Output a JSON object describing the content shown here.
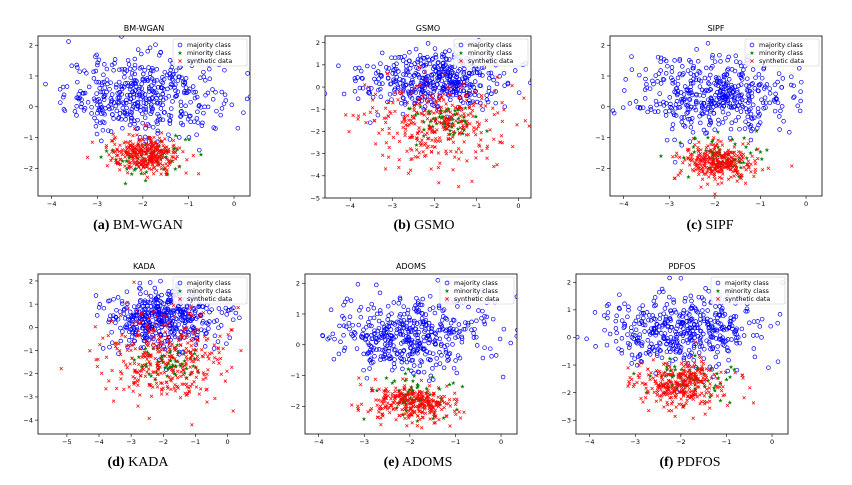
{
  "legend": {
    "majority": "majority class",
    "minority": "minority class",
    "synthetic": "synthetic data"
  },
  "colors": {
    "majority": "#0000ff",
    "minority": "#008000",
    "synthetic": "#ff0000"
  },
  "chart_data": [
    {
      "type": "scatter",
      "title": "BM-WGAN",
      "caption_letter": "(a)",
      "caption_text": " BM-WGAN",
      "xlim": [
        -4.3,
        0.35
      ],
      "ylim": [
        -2.9,
        2.3
      ],
      "xticks": [
        -4,
        -3,
        -2,
        -1,
        0
      ],
      "yticks": [
        -2,
        -1,
        0,
        1,
        2
      ],
      "series": [
        {
          "name": "majority class",
          "cluster": {
            "cx": -2.0,
            "cy": 0.35,
            "sx": 0.85,
            "sy": 0.65,
            "n": 460
          }
        },
        {
          "name": "minority class",
          "cluster": {
            "cx": -1.85,
            "cy": -1.6,
            "sx": 0.45,
            "sy": 0.4,
            "n": 60
          }
        },
        {
          "name": "synthetic data",
          "cluster": {
            "cx": -1.95,
            "cy": -1.55,
            "sx": 0.4,
            "sy": 0.3,
            "n": 320
          }
        }
      ]
    },
    {
      "type": "scatter",
      "title": "GSMO",
      "caption_letter": "(b)",
      "caption_text": " GSMO",
      "xlim": [
        -4.6,
        0.3
      ],
      "ylim": [
        -5.0,
        2.3
      ],
      "xticks": [
        -4,
        -3,
        -2,
        -1,
        0
      ],
      "yticks": [
        -5,
        -4,
        -3,
        -2,
        -1,
        0,
        1,
        2
      ],
      "series": [
        {
          "name": "majority class",
          "cluster": {
            "cx": -2.0,
            "cy": 0.35,
            "sx": 0.85,
            "sy": 0.65,
            "n": 460
          }
        },
        {
          "name": "minority class",
          "cluster": {
            "cx": -1.9,
            "cy": -1.5,
            "sx": 0.45,
            "sy": 0.35,
            "n": 60
          }
        },
        {
          "name": "synthetic data",
          "cluster": {
            "cx": -2.0,
            "cy": -1.7,
            "sx": 0.85,
            "sy": 0.95,
            "n": 330
          }
        }
      ]
    },
    {
      "type": "scatter",
      "title": "SIPF",
      "caption_letter": "(c)",
      "caption_text": " SIPF",
      "xlim": [
        -4.3,
        0.35
      ],
      "ylim": [
        -2.9,
        2.3
      ],
      "xticks": [
        -4,
        -3,
        -2,
        -1,
        0
      ],
      "yticks": [
        -2,
        -1,
        0,
        1,
        2
      ],
      "series": [
        {
          "name": "majority class",
          "cluster": {
            "cx": -2.0,
            "cy": 0.35,
            "sx": 0.85,
            "sy": 0.65,
            "n": 460
          }
        },
        {
          "name": "minority class",
          "cluster": {
            "cx": -1.9,
            "cy": -1.6,
            "sx": 0.45,
            "sy": 0.35,
            "n": 60
          }
        },
        {
          "name": "synthetic data",
          "cluster": {
            "cx": -1.95,
            "cy": -1.8,
            "sx": 0.4,
            "sy": 0.3,
            "n": 300
          }
        }
      ]
    },
    {
      "type": "scatter",
      "title": "KADA",
      "caption_letter": "(d)",
      "caption_text": " KADA",
      "xlim": [
        -5.9,
        0.7
      ],
      "ylim": [
        -4.6,
        2.3
      ],
      "xticks": [
        -5,
        -4,
        -3,
        -2,
        -1,
        0
      ],
      "yticks": [
        -4,
        -3,
        -2,
        -1,
        0,
        1,
        2
      ],
      "series": [
        {
          "name": "majority class",
          "cluster": {
            "cx": -2.0,
            "cy": 0.35,
            "sx": 0.85,
            "sy": 0.65,
            "n": 460
          }
        },
        {
          "name": "minority class",
          "cluster": {
            "cx": -1.9,
            "cy": -1.5,
            "sx": 0.45,
            "sy": 0.35,
            "n": 60
          }
        },
        {
          "name": "synthetic data",
          "cluster": {
            "cx": -2.0,
            "cy": -1.4,
            "sx": 1.0,
            "sy": 1.05,
            "n": 360
          }
        }
      ]
    },
    {
      "type": "scatter",
      "title": "ADOMS",
      "caption_letter": "(e)",
      "caption_text": " ADOMS",
      "xlim": [
        -4.3,
        0.35
      ],
      "ylim": [
        -2.9,
        2.3
      ],
      "xticks": [
        -4,
        -3,
        -2,
        -1,
        0
      ],
      "yticks": [
        -2,
        -1,
        0,
        1,
        2
      ],
      "series": [
        {
          "name": "majority class",
          "cluster": {
            "cx": -2.0,
            "cy": 0.35,
            "sx": 0.85,
            "sy": 0.65,
            "n": 460
          }
        },
        {
          "name": "minority class",
          "cluster": {
            "cx": -1.9,
            "cy": -1.6,
            "sx": 0.45,
            "sy": 0.35,
            "n": 60
          }
        },
        {
          "name": "synthetic data",
          "cluster": {
            "cx": -2.0,
            "cy": -1.9,
            "sx": 0.45,
            "sy": 0.32,
            "n": 300
          }
        }
      ]
    },
    {
      "type": "scatter",
      "title": "PDFOS",
      "caption_letter": "(f)",
      "caption_text": " PDFOS",
      "xlim": [
        -4.3,
        0.35
      ],
      "ylim": [
        -3.5,
        2.3
      ],
      "xticks": [
        -4,
        -3,
        -2,
        -1,
        0
      ],
      "yticks": [
        -3,
        -2,
        -1,
        0,
        1,
        2
      ],
      "series": [
        {
          "name": "majority class",
          "cluster": {
            "cx": -2.0,
            "cy": 0.35,
            "sx": 0.85,
            "sy": 0.65,
            "n": 460
          }
        },
        {
          "name": "minority class",
          "cluster": {
            "cx": -1.9,
            "cy": -1.5,
            "sx": 0.45,
            "sy": 0.35,
            "n": 60
          }
        },
        {
          "name": "synthetic data",
          "cluster": {
            "cx": -2.0,
            "cy": -1.7,
            "sx": 0.5,
            "sy": 0.45,
            "n": 320
          }
        }
      ]
    }
  ]
}
